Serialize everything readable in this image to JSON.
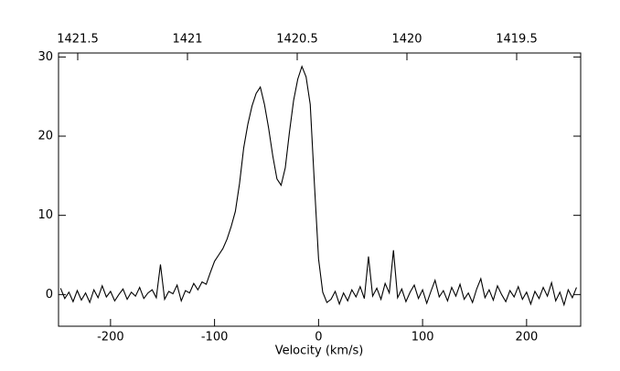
{
  "chart_data": {
    "type": "line",
    "x_label": "Velocity (km/s)",
    "x": [
      -248,
      -244,
      -240,
      -236,
      -232,
      -228,
      -224,
      -220,
      -216,
      -212,
      -208,
      -204,
      -200,
      -196,
      -192,
      -188,
      -184,
      -180,
      -176,
      -172,
      -168,
      -164,
      -160,
      -156,
      -152,
      -148,
      -144,
      -140,
      -136,
      -132,
      -128,
      -124,
      -120,
      -116,
      -112,
      -108,
      -104,
      -100,
      -96,
      -92,
      -88,
      -84,
      -80,
      -76,
      -72,
      -68,
      -64,
      -60,
      -56,
      -52,
      -48,
      -44,
      -40,
      -36,
      -32,
      -28,
      -24,
      -20,
      -16,
      -12,
      -8,
      -4,
      0,
      4,
      8,
      12,
      16,
      20,
      24,
      28,
      32,
      36,
      40,
      44,
      48,
      52,
      56,
      60,
      64,
      68,
      72,
      76,
      80,
      84,
      88,
      92,
      96,
      100,
      104,
      108,
      112,
      116,
      120,
      124,
      128,
      132,
      136,
      140,
      144,
      148,
      152,
      156,
      160,
      164,
      168,
      172,
      176,
      180,
      184,
      188,
      192,
      196,
      200,
      204,
      208,
      212,
      216,
      220,
      224,
      228,
      232,
      236,
      240,
      244,
      248
    ],
    "series": [
      {
        "color": "#000000",
        "values": [
          0.8,
          -0.5,
          0.3,
          -0.9,
          0.5,
          -0.7,
          0.2,
          -1.0,
          0.6,
          -0.4,
          1.1,
          -0.3,
          0.4,
          -0.8,
          0.0,
          0.7,
          -0.6,
          0.3,
          -0.2,
          0.9,
          -0.5,
          0.2,
          0.6,
          -0.4,
          3.8,
          -0.6,
          0.4,
          0.1,
          1.2,
          -0.8,
          0.5,
          0.2,
          1.4,
          0.6,
          1.6,
          1.3,
          2.8,
          4.2,
          5.0,
          5.8,
          7.0,
          8.6,
          10.5,
          14.0,
          18.5,
          21.5,
          23.8,
          25.4,
          26.2,
          24.0,
          21.0,
          17.5,
          14.6,
          13.8,
          16.0,
          20.5,
          24.5,
          27.2,
          28.8,
          27.5,
          24.0,
          14.0,
          4.5,
          0.3,
          -1.0,
          -0.6,
          0.4,
          -1.2,
          0.2,
          -0.8,
          0.6,
          -0.3,
          1.0,
          -0.5,
          4.8,
          -0.2,
          0.8,
          -0.6,
          1.4,
          0.2,
          5.6,
          -0.4,
          0.7,
          -0.9,
          0.3,
          1.2,
          -0.5,
          0.6,
          -1.1,
          0.4,
          1.8,
          -0.3,
          0.5,
          -0.8,
          0.9,
          -0.2,
          1.3,
          -0.6,
          0.2,
          -1.0,
          0.7,
          2.0,
          -0.4,
          0.6,
          -0.7,
          1.1,
          0.0,
          -0.9,
          0.5,
          -0.3,
          1.0,
          -0.6,
          0.3,
          -1.2,
          0.4,
          -0.5,
          0.9,
          -0.2,
          1.5,
          -0.8,
          0.3,
          -1.3,
          0.6,
          -0.4,
          0.9
        ]
      }
    ],
    "xlim": [
      -250,
      252
    ],
    "xticks": [
      -200,
      -100,
      0,
      100,
      200
    ],
    "ylim": [
      -4,
      30.5
    ],
    "yticks": [
      0,
      10,
      20,
      30
    ],
    "x2lim": [
      1421.5875,
      1419.2083
    ],
    "x2ticks": [
      1421.5,
      1421,
      1420.5,
      1420,
      1419.5
    ]
  }
}
